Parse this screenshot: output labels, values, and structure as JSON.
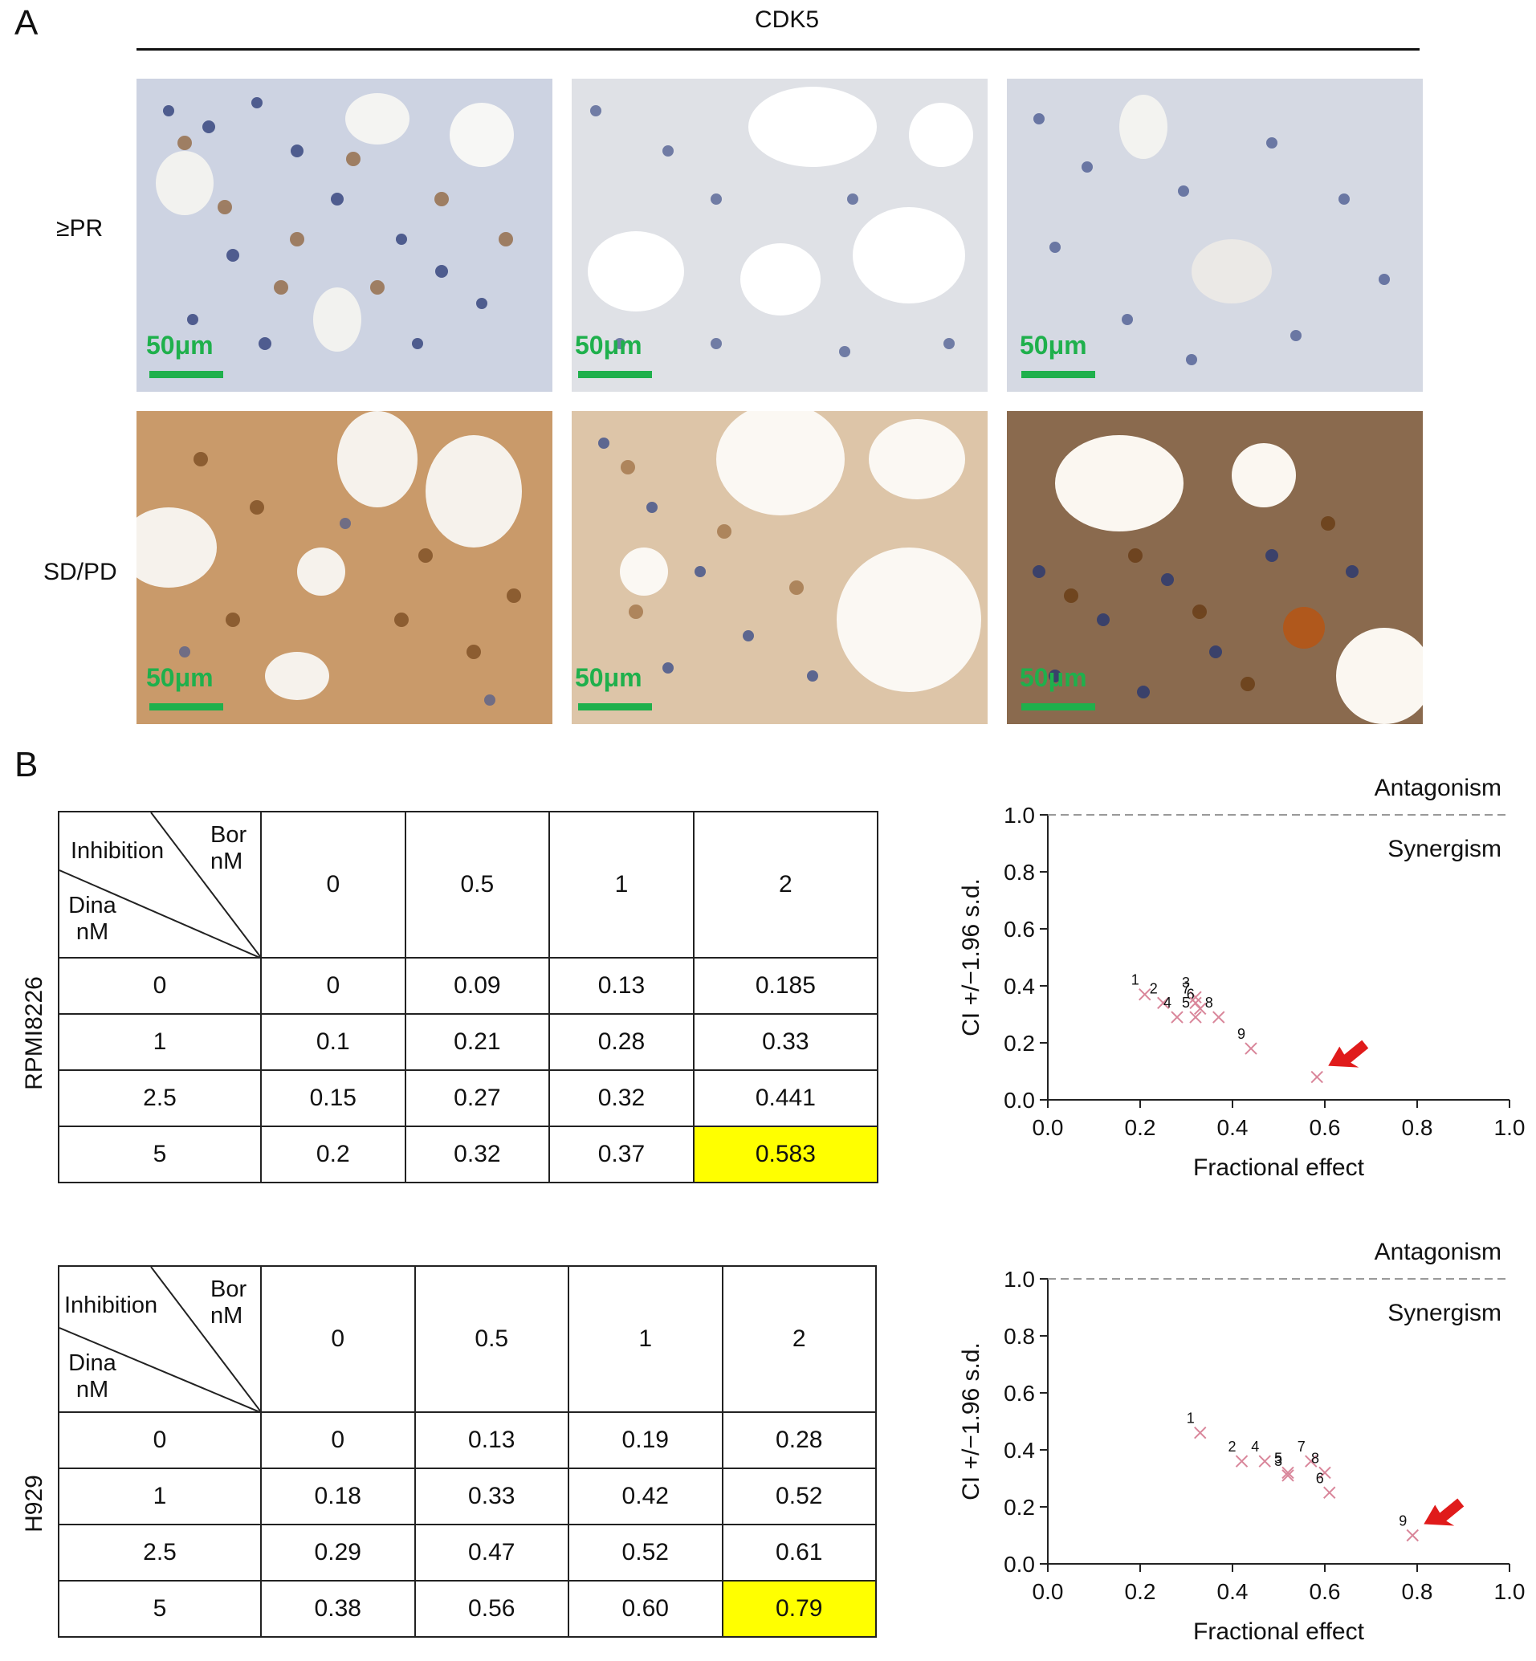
{
  "panel_a": {
    "letter": "A",
    "title": "CDK5",
    "rows": [
      "≥PR",
      "SD/PD"
    ],
    "scale_label": "50μm"
  },
  "panel_b": {
    "letter": "B",
    "tables": [
      {
        "cell_line": "RPMI8226",
        "corner": {
          "top_left": "Inhibition",
          "top_right": "Bor\nnM",
          "bottom_left": "Dina\nnM"
        },
        "col_headers": [
          "0",
          "0.5",
          "1",
          "2"
        ],
        "rows": [
          {
            "dina": "0",
            "values": [
              "0",
              "0.09",
              "0.13",
              "0.185"
            ]
          },
          {
            "dina": "1",
            "values": [
              "0.1",
              "0.21",
              "0.28",
              "0.33"
            ]
          },
          {
            "dina": "2.5",
            "values": [
              "0.15",
              "0.27",
              "0.32",
              "0.441"
            ]
          },
          {
            "dina": "5",
            "values": [
              "0.2",
              "0.32",
              "0.37",
              "0.583"
            ]
          }
        ],
        "highlight_color": "#ffff00"
      },
      {
        "cell_line": "H929",
        "corner": {
          "top_left": "Inhibition",
          "top_right": "Bor\nnM",
          "bottom_left": "Dina\nnM"
        },
        "col_headers": [
          "0",
          "0.5",
          "1",
          "2"
        ],
        "rows": [
          {
            "dina": "0",
            "values": [
              "0",
              "0.13",
              "0.19",
              "0.28"
            ]
          },
          {
            "dina": "1",
            "values": [
              "0.18",
              "0.33",
              "0.42",
              "0.52"
            ]
          },
          {
            "dina": "2.5",
            "values": [
              "0.29",
              "0.47",
              "0.52",
              "0.61"
            ]
          },
          {
            "dina": "5",
            "values": [
              "0.38",
              "0.56",
              "0.60",
              "0.79"
            ]
          }
        ],
        "highlight_color": "#ffff00"
      }
    ]
  },
  "chart_data": [
    {
      "type": "scatter",
      "xlabel": "Fractional effect",
      "ylabel": "CI +/−1.96 s.d.",
      "xlim": [
        0.0,
        1.0
      ],
      "ylim": [
        0.0,
        1.0
      ],
      "xticks": [
        "0.0",
        "0.2",
        "0.4",
        "0.6",
        "0.8",
        "1.0"
      ],
      "yticks": [
        "0.0",
        "0.2",
        "0.4",
        "0.6",
        "0.8",
        "1.0"
      ],
      "reference_line": {
        "y": 1.0,
        "style": "dashed"
      },
      "annotations": {
        "above": "Antagonism",
        "below": "Synergism"
      },
      "points": [
        {
          "label": "1",
          "x": 0.21,
          "y": 0.37
        },
        {
          "label": "2",
          "x": 0.25,
          "y": 0.34
        },
        {
          "label": "3",
          "x": 0.32,
          "y": 0.36
        },
        {
          "label": "4",
          "x": 0.28,
          "y": 0.29
        },
        {
          "label": "5",
          "x": 0.32,
          "y": 0.29
        },
        {
          "label": "6",
          "x": 0.33,
          "y": 0.32
        },
        {
          "label": "7",
          "x": 0.32,
          "y": 0.34
        },
        {
          "label": "8",
          "x": 0.37,
          "y": 0.29
        },
        {
          "label": "9",
          "x": 0.44,
          "y": 0.18
        },
        {
          "label": "",
          "x": 0.583,
          "y": 0.08
        }
      ],
      "highlight_point": {
        "x": 0.583,
        "y": 0.08
      },
      "marker_color": "#d9869a",
      "arrow_color": "#e01b1b"
    },
    {
      "type": "scatter",
      "xlabel": "Fractional effect",
      "ylabel": "CI +/−1.96 s.d.",
      "xlim": [
        0.0,
        1.0
      ],
      "ylim": [
        0.0,
        1.0
      ],
      "xticks": [
        "0.0",
        "0.2",
        "0.4",
        "0.6",
        "0.8",
        "1.0"
      ],
      "yticks": [
        "0.0",
        "0.2",
        "0.4",
        "0.6",
        "0.8",
        "1.0"
      ],
      "reference_line": {
        "y": 1.0,
        "style": "dashed"
      },
      "annotations": {
        "above": "Antagonism",
        "below": "Synergism"
      },
      "points": [
        {
          "label": "1",
          "x": 0.33,
          "y": 0.46
        },
        {
          "label": "2",
          "x": 0.42,
          "y": 0.36
        },
        {
          "label": "4",
          "x": 0.47,
          "y": 0.36
        },
        {
          "label": "5",
          "x": 0.52,
          "y": 0.32
        },
        {
          "label": "3",
          "x": 0.52,
          "y": 0.31
        },
        {
          "label": "7",
          "x": 0.57,
          "y": 0.36
        },
        {
          "label": "8",
          "x": 0.6,
          "y": 0.32
        },
        {
          "label": "6",
          "x": 0.61,
          "y": 0.25
        },
        {
          "label": "9",
          "x": 0.79,
          "y": 0.1
        }
      ],
      "highlight_point": {
        "x": 0.79,
        "y": 0.1
      },
      "marker_color": "#d9869a",
      "arrow_color": "#e01b1b"
    }
  ]
}
